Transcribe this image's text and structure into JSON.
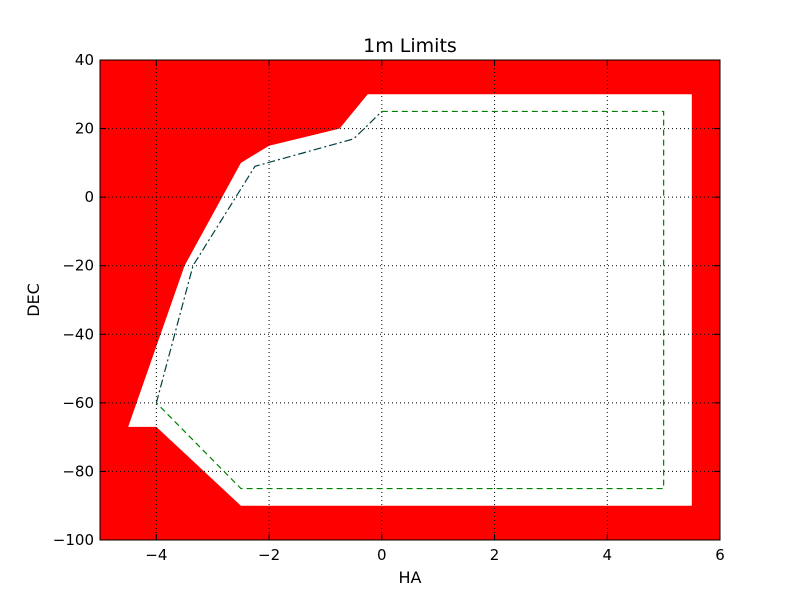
{
  "chart_data": {
    "type": "area",
    "title": "1m Limits",
    "xlabel": "HA",
    "ylabel": "DEC",
    "xlim": [
      -5,
      6
    ],
    "ylim": [
      -100,
      40
    ],
    "xticks": [
      -4,
      -2,
      0,
      2,
      4,
      6
    ],
    "yticks": [
      -100,
      -80,
      -60,
      -40,
      -20,
      0,
      20,
      40
    ],
    "xtick_labels": [
      "−4",
      "−2",
      "0",
      "2",
      "4",
      "6"
    ],
    "ytick_labels": [
      "−100",
      "−80",
      "−60",
      "−40",
      "−20",
      "0",
      "20",
      "40"
    ],
    "grid": true,
    "background_color": "#ff0000",
    "allowed_region_color": "#ffffff",
    "allowed_region": {
      "x": [
        -0.25,
        5.5,
        5.5,
        -2.5,
        -4.0,
        -4.5,
        -3.5,
        -2.5,
        -2.0,
        -0.75,
        -0.25
      ],
      "y": [
        30,
        30,
        -90,
        -90,
        -67,
        -67,
        -20,
        10,
        15,
        20,
        30
      ]
    },
    "series": [
      {
        "style": "dashed",
        "color": "#008000",
        "x": [
          0,
          5,
          5,
          -2.5,
          -4.0
        ],
        "y": [
          25,
          25,
          -85,
          -85,
          -60
        ]
      },
      {
        "style": "dashdot",
        "color": "#004040",
        "x": [
          -4.0,
          -3.35,
          -2.25,
          -0.5,
          0
        ],
        "y": [
          -60,
          -20,
          9,
          17,
          25
        ]
      }
    ]
  }
}
